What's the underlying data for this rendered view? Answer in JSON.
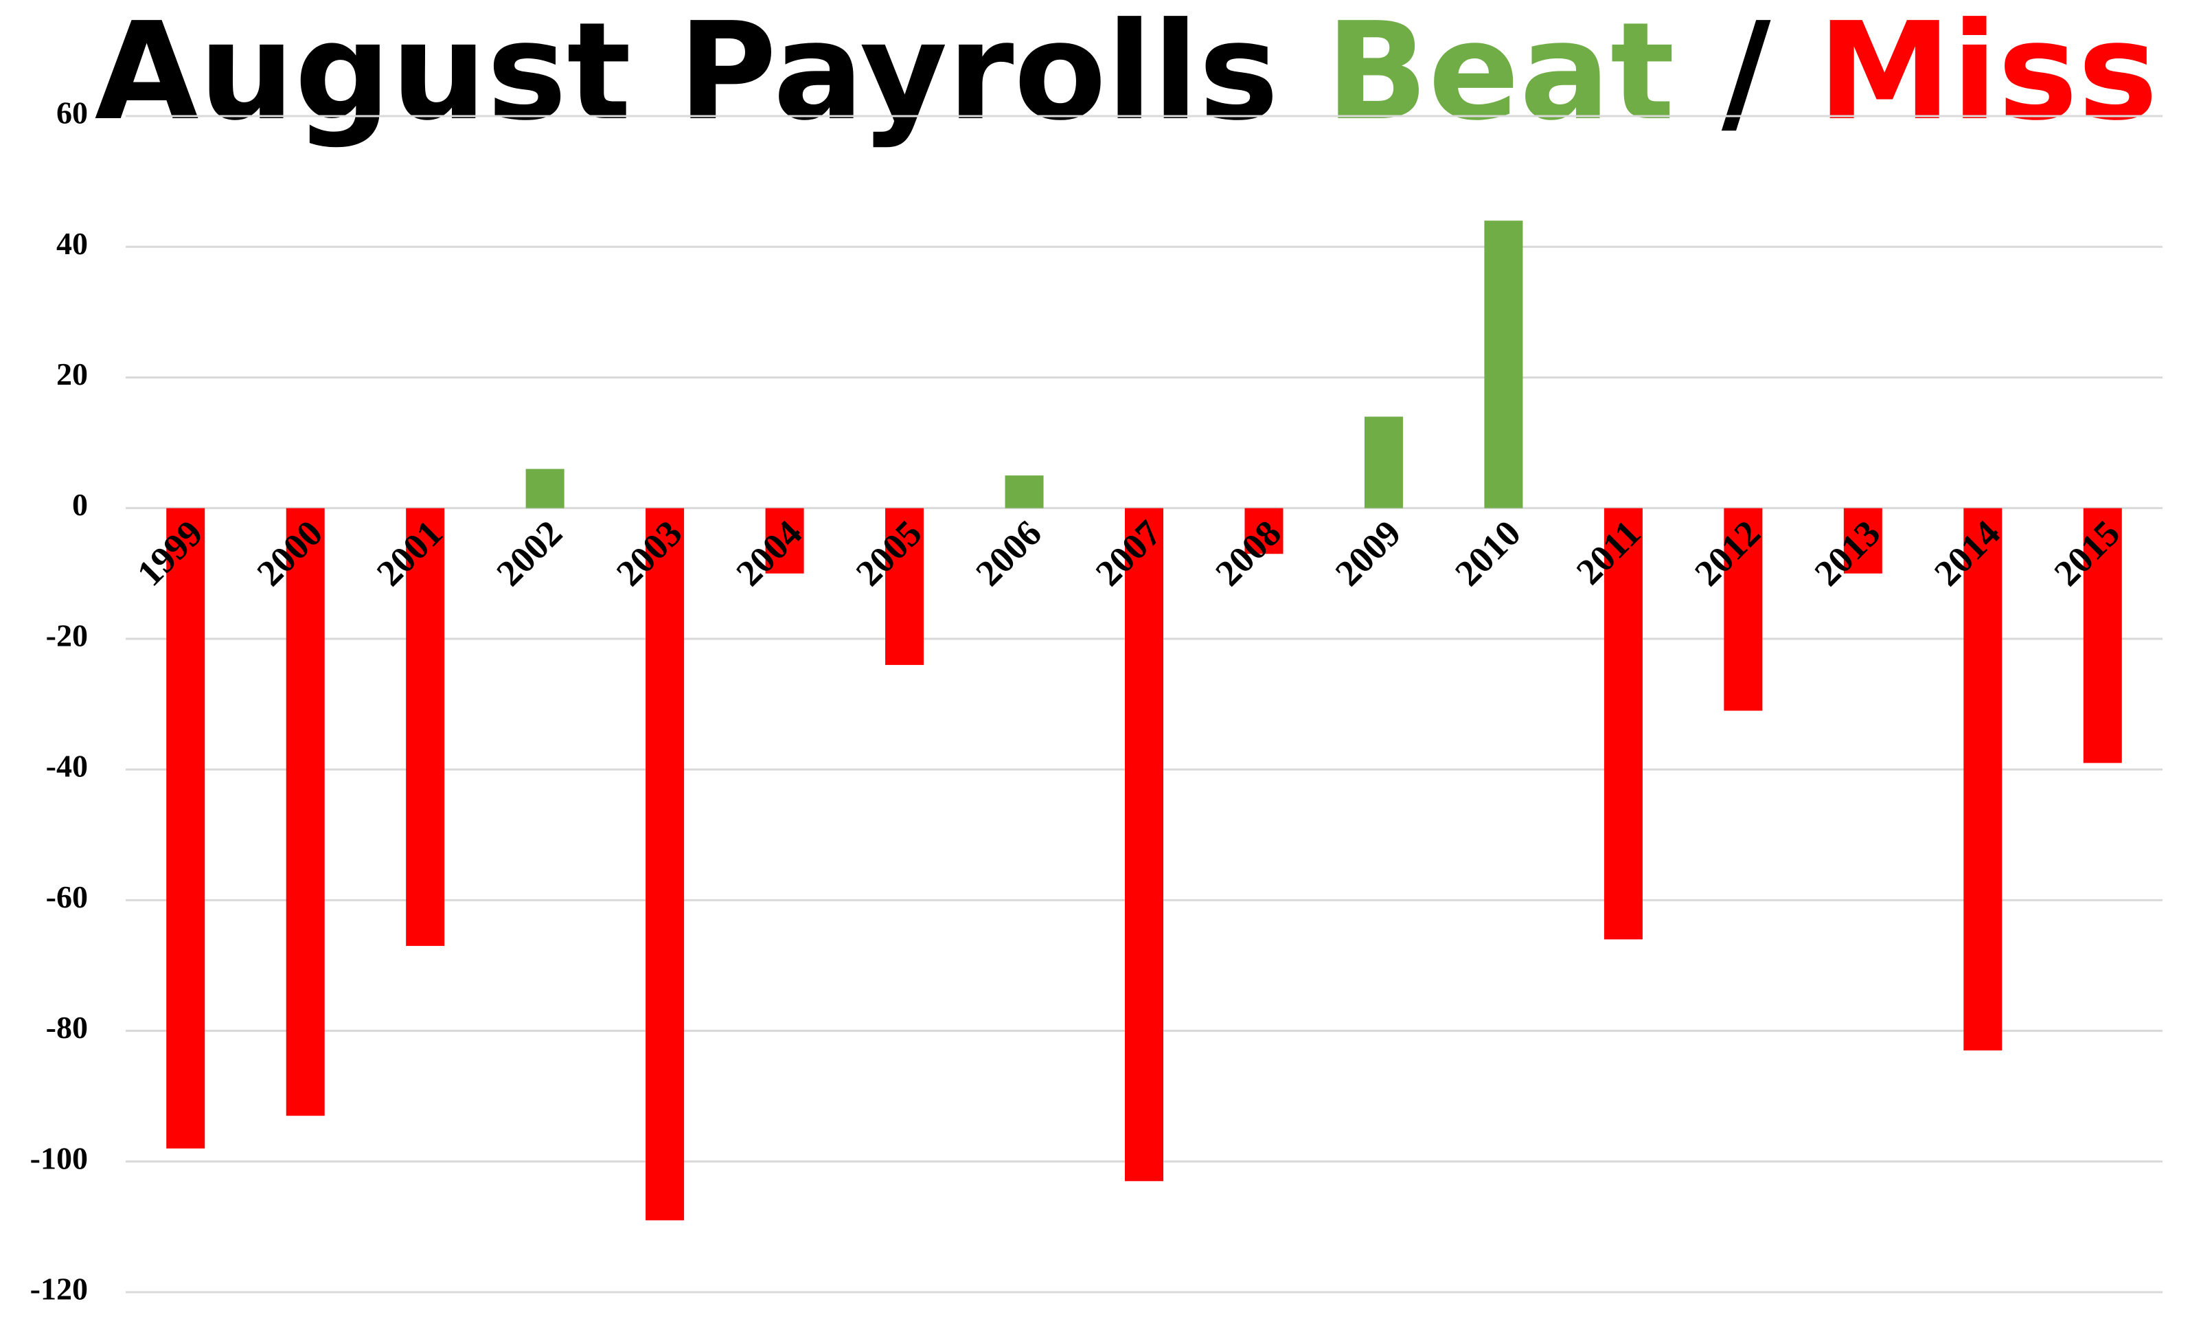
{
  "chart_data": {
    "type": "bar",
    "title": [
      {
        "text": "August Payrolls",
        "color": "#000000"
      },
      {
        "text": "Beat",
        "color": "#70ad47"
      },
      {
        "text": "/",
        "color": "#000000"
      },
      {
        "text": "Miss",
        "color": "#ff0000"
      }
    ],
    "categories": [
      "1999",
      "2000",
      "2001",
      "2002",
      "2003",
      "2004",
      "2005",
      "2006",
      "2007",
      "2008",
      "2009",
      "2010",
      "2011",
      "2012",
      "2013",
      "2014",
      "2015"
    ],
    "values": [
      -98,
      -93,
      -67,
      6,
      -109,
      -10,
      -24,
      5,
      -103,
      -7,
      14,
      44,
      -66,
      -31,
      -10,
      -83,
      -39
    ],
    "colors": {
      "positive": "#70ad47",
      "negative": "#ff0000"
    },
    "ylim": [
      -120,
      60
    ],
    "yticks": [
      -120,
      -100,
      -80,
      -60,
      -40,
      -20,
      0,
      20,
      40,
      60
    ],
    "grid": true
  }
}
